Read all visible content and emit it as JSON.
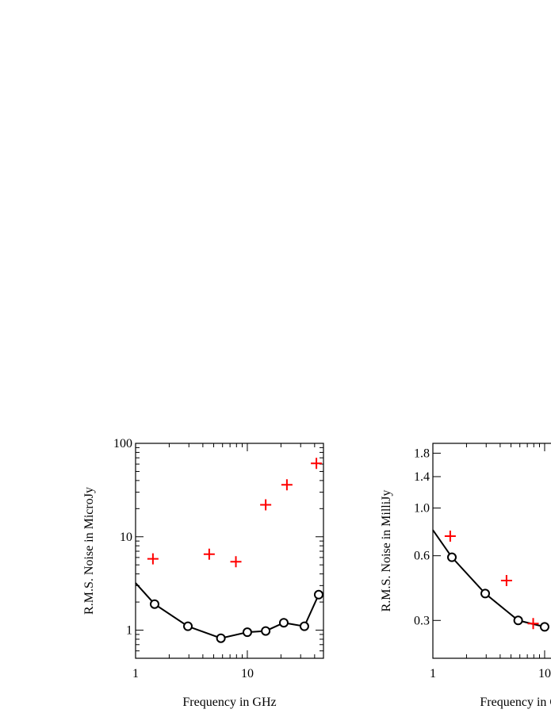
{
  "chart_data": [
    {
      "type": "scatter",
      "xlabel": "Frequency in GHz",
      "ylabel": "R.M.S. Noise in MicroJy",
      "xscale": "log",
      "yscale": "log",
      "xlim": [
        1,
        48
      ],
      "ylim": [
        0.5,
        100
      ],
      "xticks": [
        1,
        10
      ],
      "yticks": [
        1,
        10,
        100
      ],
      "xminor": true,
      "yminor": true,
      "series": [
        {
          "style": "line",
          "color": "#000000",
          "x": [
            1,
            1.48,
            2.94,
            5.8,
            10,
            14.6,
            21.2,
            32.4,
            43.5
          ],
          "values": [
            3.2,
            1.9,
            1.1,
            0.82,
            0.95,
            0.98,
            1.2,
            1.1,
            2.4
          ]
        },
        {
          "style": "circle",
          "color": "#000000",
          "x": [
            1.48,
            2.94,
            5.8,
            10,
            14.6,
            21.2,
            32.4,
            43.5
          ],
          "values": [
            1.9,
            1.1,
            0.82,
            0.95,
            0.98,
            1.2,
            1.1,
            2.4
          ]
        },
        {
          "style": "plus",
          "color": "#ff0000",
          "x": [
            1.43,
            4.56,
            7.9,
            14.6,
            22.6,
            41.5
          ],
          "values": [
            5.8,
            6.5,
            5.4,
            22,
            36,
            61
          ]
        }
      ]
    },
    {
      "type": "scatter",
      "xlabel": "Frequency in GHz",
      "ylabel": "R.M.S. Noise in MilliJy",
      "xscale": "log",
      "yscale": "log",
      "xlim": [
        1,
        48
      ],
      "ylim": [
        0.2,
        2
      ],
      "xticks": [
        1,
        10
      ],
      "yticks": [
        0.3,
        0.6,
        {
          "value": 1,
          "label": "1.0"
        },
        1.4,
        1.8
      ],
      "xminor": true,
      "yminor": false,
      "series": [
        {
          "style": "line",
          "color": "#000000",
          "x": [
            1,
            1.48,
            2.94,
            5.8,
            10
          ],
          "values": [
            0.79,
            0.59,
            0.4,
            0.3,
            0.28
          ]
        },
        {
          "style": "circle",
          "color": "#000000",
          "x": [
            1.48,
            2.94,
            5.8,
            10
          ],
          "values": [
            0.59,
            0.4,
            0.3,
            0.28
          ]
        },
        {
          "style": "plus",
          "color": "#ff0000",
          "x": [
            1.43,
            4.56,
            7.9
          ],
          "values": [
            0.74,
            0.46,
            0.29
          ]
        }
      ]
    }
  ]
}
